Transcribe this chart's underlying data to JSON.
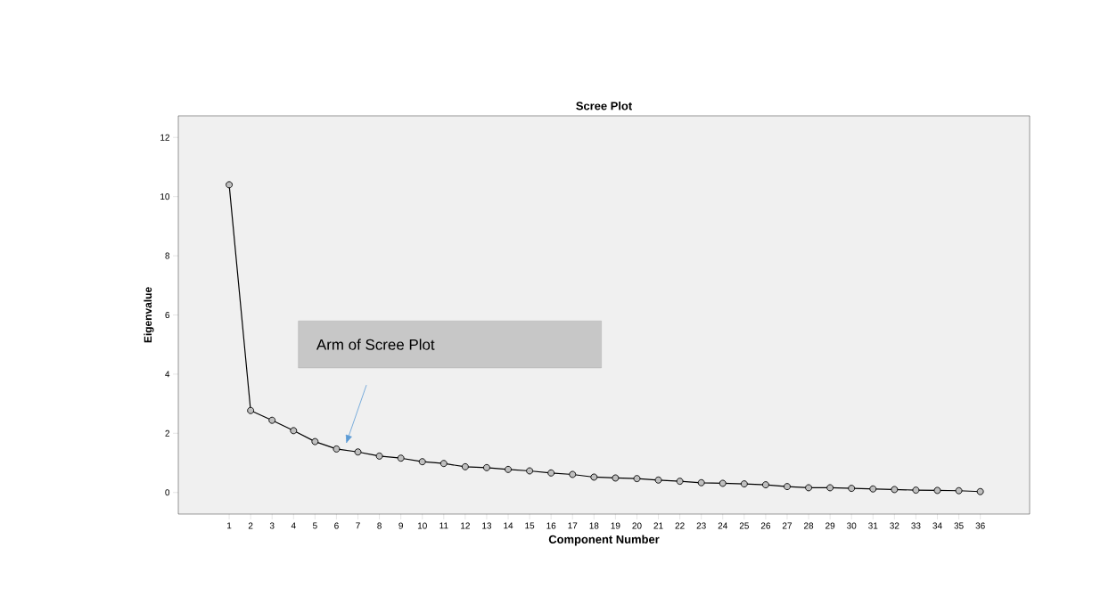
{
  "chart_data": {
    "type": "line",
    "title": "Scree Plot",
    "xlabel": "Component Number",
    "ylabel": "Eigenvalue",
    "x": [
      1,
      2,
      3,
      4,
      5,
      6,
      7,
      8,
      9,
      10,
      11,
      12,
      13,
      14,
      15,
      16,
      17,
      18,
      19,
      20,
      21,
      22,
      23,
      24,
      25,
      26,
      27,
      28,
      29,
      30,
      31,
      32,
      33,
      34,
      35,
      36
    ],
    "series": [
      {
        "color": "#000000",
        "values": [
          10.4,
          2.77,
          2.44,
          2.09,
          1.72,
          1.47,
          1.37,
          1.23,
          1.16,
          1.04,
          0.98,
          0.87,
          0.84,
          0.78,
          0.73,
          0.66,
          0.61,
          0.52,
          0.49,
          0.47,
          0.42,
          0.38,
          0.33,
          0.31,
          0.29,
          0.26,
          0.2,
          0.16,
          0.16,
          0.14,
          0.12,
          0.1,
          0.08,
          0.07,
          0.06,
          0.03
        ]
      }
    ],
    "xlim": [
      -1.37,
      38.3
    ],
    "ylim": [
      -0.73,
      12.73
    ],
    "xticks": [
      1,
      2,
      3,
      4,
      5,
      6,
      7,
      8,
      9,
      10,
      11,
      12,
      13,
      14,
      15,
      16,
      17,
      18,
      19,
      20,
      21,
      22,
      23,
      24,
      25,
      26,
      27,
      28,
      29,
      30,
      31,
      32,
      33,
      34,
      35,
      36
    ],
    "yticks": [
      0,
      2,
      4,
      6,
      8,
      10,
      12
    ],
    "marker": "circle",
    "line_style": "solid",
    "grid": false,
    "annotations": [
      "Arm of Scree Plot"
    ]
  }
}
